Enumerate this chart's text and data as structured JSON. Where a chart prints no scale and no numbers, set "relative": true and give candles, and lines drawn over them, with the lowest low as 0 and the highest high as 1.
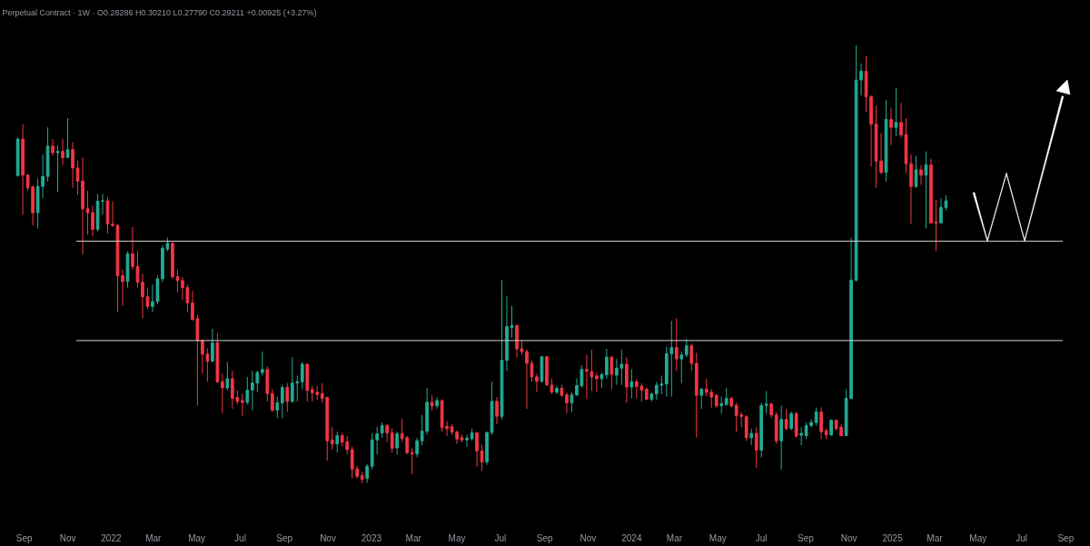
{
  "chart_data": {
    "type": "candlestick",
    "title": "Perpetual Contract · 1W · O0.28286 H0.30210 L0.27790 C0.29211 +0.00925 (+3.27%)",
    "relative": true,
    "x": [
      "2021-08-23",
      "2021-08-30",
      "2021-09-06",
      "2021-09-13",
      "2021-09-20",
      "2021-09-27",
      "2021-10-04",
      "2021-10-11",
      "2021-10-18",
      "2021-10-25",
      "2021-11-01",
      "2021-11-08",
      "2021-11-15",
      "2021-11-22",
      "2021-11-29",
      "2021-12-06",
      "2021-12-13",
      "2021-12-20",
      "2021-12-27",
      "2022-01-03",
      "2022-01-10",
      "2022-01-17",
      "2022-01-24",
      "2022-01-31",
      "2022-02-07",
      "2022-02-14",
      "2022-02-21",
      "2022-02-28",
      "2022-03-07",
      "2022-03-14",
      "2022-03-21",
      "2022-03-28",
      "2022-04-04",
      "2022-04-11",
      "2022-04-18",
      "2022-04-25",
      "2022-05-02",
      "2022-05-09",
      "2022-05-16",
      "2022-05-23",
      "2022-05-30",
      "2022-06-06",
      "2022-06-13",
      "2022-06-20",
      "2022-06-27",
      "2022-07-04",
      "2022-07-11",
      "2022-07-18",
      "2022-07-25",
      "2022-08-01",
      "2022-08-08",
      "2022-08-15",
      "2022-08-22",
      "2022-08-29",
      "2022-09-05",
      "2022-09-12",
      "2022-09-19",
      "2022-09-26",
      "2022-10-03",
      "2022-10-10",
      "2022-10-17",
      "2022-10-24",
      "2022-10-31",
      "2022-11-07",
      "2022-11-14",
      "2022-11-21",
      "2022-11-28",
      "2022-12-05",
      "2022-12-12",
      "2022-12-19",
      "2022-12-26",
      "2023-01-02",
      "2023-01-09",
      "2023-01-16",
      "2023-01-23",
      "2023-01-30",
      "2023-02-06",
      "2023-02-13",
      "2023-02-20",
      "2023-02-27",
      "2023-03-06",
      "2023-03-13",
      "2023-03-20",
      "2023-03-27",
      "2023-04-03",
      "2023-04-10",
      "2023-04-17",
      "2023-04-24",
      "2023-05-01",
      "2023-05-08",
      "2023-05-15",
      "2023-05-22",
      "2023-05-29",
      "2023-06-05",
      "2023-06-12",
      "2023-06-19",
      "2023-06-26",
      "2023-07-03",
      "2023-07-10",
      "2023-07-17",
      "2023-07-24",
      "2023-07-31",
      "2023-08-07",
      "2023-08-14",
      "2023-08-21",
      "2023-08-28",
      "2023-09-04",
      "2023-09-11",
      "2023-09-18",
      "2023-09-25",
      "2023-10-02",
      "2023-10-09",
      "2023-10-16",
      "2023-10-23",
      "2023-10-30",
      "2023-11-06",
      "2023-11-13",
      "2023-11-20",
      "2023-11-27",
      "2023-12-04",
      "2023-12-11",
      "2023-12-18",
      "2023-12-25",
      "2024-01-01",
      "2024-01-08",
      "2024-01-15",
      "2024-01-22",
      "2024-01-29",
      "2024-02-05",
      "2024-02-12",
      "2024-02-19",
      "2024-02-26",
      "2024-03-04",
      "2024-03-11",
      "2024-03-18",
      "2024-03-25",
      "2024-04-01",
      "2024-04-08",
      "2024-04-15",
      "2024-04-22",
      "2024-04-29",
      "2024-05-06",
      "2024-05-13",
      "2024-05-20",
      "2024-05-27",
      "2024-06-03",
      "2024-06-10",
      "2024-06-17",
      "2024-06-24",
      "2024-07-01",
      "2024-07-08",
      "2024-07-15",
      "2024-07-22",
      "2024-07-29",
      "2024-08-05",
      "2024-08-12",
      "2024-08-19",
      "2024-08-26",
      "2024-09-02",
      "2024-09-09",
      "2024-09-16",
      "2024-09-23",
      "2024-09-30",
      "2024-10-07",
      "2024-10-14",
      "2024-10-21",
      "2024-10-28",
      "2024-11-04",
      "2024-11-11",
      "2024-11-18",
      "2024-11-25",
      "2024-12-02",
      "2024-12-09",
      "2024-12-16",
      "2024-12-23",
      "2024-12-30",
      "2025-01-06",
      "2025-01-13",
      "2025-01-20",
      "2025-01-27",
      "2025-02-03",
      "2025-02-10",
      "2025-02-17",
      "2025-02-24",
      "2025-03-03",
      "2025-03-10",
      "2025-03-17"
    ],
    "ohlc": [
      [
        0.703,
        0.79,
        0.7,
        0.786
      ],
      [
        0.786,
        0.82,
        0.613,
        0.704
      ],
      [
        0.704,
        0.706,
        0.668,
        0.675
      ],
      [
        0.677,
        0.68,
        0.589,
        0.618
      ],
      [
        0.618,
        0.696,
        0.582,
        0.678
      ],
      [
        0.678,
        0.751,
        0.651,
        0.701
      ],
      [
        0.701,
        0.813,
        0.689,
        0.77
      ],
      [
        0.77,
        0.786,
        0.748,
        0.755
      ],
      [
        0.755,
        0.772,
        0.665,
        0.758
      ],
      [
        0.758,
        0.786,
        0.727,
        0.744
      ],
      [
        0.744,
        0.834,
        0.744,
        0.762
      ],
      [
        0.762,
        0.779,
        0.675,
        0.72
      ],
      [
        0.72,
        0.737,
        0.658,
        0.69
      ],
      [
        0.69,
        0.744,
        0.523,
        0.627
      ],
      [
        0.627,
        0.668,
        0.568,
        0.618
      ],
      [
        0.618,
        0.634,
        0.564,
        0.58
      ],
      [
        0.58,
        0.661,
        0.575,
        0.644
      ],
      [
        0.644,
        0.661,
        0.613,
        0.645
      ],
      [
        0.645,
        0.654,
        0.571,
        0.592
      ],
      [
        0.592,
        0.644,
        0.585,
        0.589
      ],
      [
        0.589,
        0.592,
        0.391,
        0.474
      ],
      [
        0.474,
        0.488,
        0.405,
        0.461
      ],
      [
        0.461,
        0.53,
        0.447,
        0.524
      ],
      [
        0.524,
        0.585,
        0.488,
        0.495
      ],
      [
        0.495,
        0.53,
        0.447,
        0.459
      ],
      [
        0.459,
        0.478,
        0.377,
        0.426
      ],
      [
        0.426,
        0.447,
        0.398,
        0.404
      ],
      [
        0.404,
        0.454,
        0.391,
        0.415
      ],
      [
        0.415,
        0.474,
        0.409,
        0.467
      ],
      [
        0.467,
        0.544,
        0.46,
        0.537
      ],
      [
        0.535,
        0.561,
        0.53,
        0.548
      ],
      [
        0.548,
        0.551,
        0.467,
        0.472
      ],
      [
        0.472,
        0.488,
        0.436,
        0.463
      ],
      [
        0.463,
        0.471,
        0.419,
        0.447
      ],
      [
        0.447,
        0.454,
        0.391,
        0.412
      ],
      [
        0.412,
        0.44,
        0.371,
        0.374
      ],
      [
        0.376,
        0.385,
        0.177,
        0.326
      ],
      [
        0.326,
        0.329,
        0.25,
        0.295
      ],
      [
        0.295,
        0.308,
        0.232,
        0.279
      ],
      [
        0.279,
        0.353,
        0.277,
        0.321
      ],
      [
        0.321,
        0.343,
        0.229,
        0.232
      ],
      [
        0.232,
        0.25,
        0.16,
        0.218
      ],
      [
        0.218,
        0.277,
        0.212,
        0.239
      ],
      [
        0.239,
        0.257,
        0.17,
        0.194
      ],
      [
        0.196,
        0.212,
        0.18,
        0.187
      ],
      [
        0.189,
        0.205,
        0.153,
        0.185
      ],
      [
        0.185,
        0.243,
        0.18,
        0.213
      ],
      [
        0.213,
        0.257,
        0.167,
        0.229
      ],
      [
        0.229,
        0.257,
        0.208,
        0.253
      ],
      [
        0.253,
        0.301,
        0.246,
        0.26
      ],
      [
        0.26,
        0.267,
        0.187,
        0.205
      ],
      [
        0.205,
        0.215,
        0.163,
        0.167
      ],
      [
        0.167,
        0.198,
        0.149,
        0.184
      ],
      [
        0.184,
        0.225,
        0.149,
        0.219
      ],
      [
        0.219,
        0.229,
        0.163,
        0.187
      ],
      [
        0.187,
        0.288,
        0.184,
        0.229
      ],
      [
        0.229,
        0.246,
        0.187,
        0.232
      ],
      [
        0.232,
        0.277,
        0.215,
        0.272
      ],
      [
        0.272,
        0.274,
        0.187,
        0.212
      ],
      [
        0.214,
        0.222,
        0.187,
        0.207
      ],
      [
        0.208,
        0.222,
        0.191,
        0.203
      ],
      [
        0.205,
        0.229,
        0.184,
        0.194
      ],
      [
        0.196,
        0.198,
        0.052,
        0.097
      ],
      [
        0.099,
        0.128,
        0.077,
        0.09
      ],
      [
        0.09,
        0.118,
        0.07,
        0.109
      ],
      [
        0.109,
        0.115,
        0.084,
        0.094
      ],
      [
        0.095,
        0.108,
        0.066,
        0.077
      ],
      [
        0.077,
        0.084,
        0.011,
        0.032
      ],
      [
        0.033,
        0.04,
        0.011,
        0.016
      ],
      [
        0.018,
        0.026,
        0.0,
        0.009
      ],
      [
        0.011,
        0.044,
        0.001,
        0.039
      ],
      [
        0.039,
        0.115,
        0.032,
        0.099
      ],
      [
        0.099,
        0.129,
        0.066,
        0.113
      ],
      [
        0.115,
        0.139,
        0.104,
        0.132
      ],
      [
        0.132,
        0.135,
        0.094,
        0.115
      ],
      [
        0.115,
        0.125,
        0.07,
        0.08
      ],
      [
        0.081,
        0.118,
        0.066,
        0.113
      ],
      [
        0.113,
        0.148,
        0.094,
        0.102
      ],
      [
        0.104,
        0.108,
        0.066,
        0.07
      ],
      [
        0.07,
        0.08,
        0.021,
        0.067
      ],
      [
        0.067,
        0.104,
        0.059,
        0.097
      ],
      [
        0.097,
        0.156,
        0.087,
        0.119
      ],
      [
        0.119,
        0.218,
        0.111,
        0.185
      ],
      [
        0.185,
        0.201,
        0.166,
        0.177
      ],
      [
        0.177,
        0.197,
        0.17,
        0.189
      ],
      [
        0.189,
        0.192,
        0.118,
        0.128
      ],
      [
        0.13,
        0.142,
        0.108,
        0.125
      ],
      [
        0.129,
        0.135,
        0.111,
        0.117
      ],
      [
        0.117,
        0.121,
        0.09,
        0.101
      ],
      [
        0.104,
        0.111,
        0.094,
        0.099
      ],
      [
        0.099,
        0.111,
        0.083,
        0.103
      ],
      [
        0.102,
        0.125,
        0.097,
        0.115
      ],
      [
        0.115,
        0.118,
        0.038,
        0.074
      ],
      [
        0.074,
        0.088,
        0.028,
        0.049
      ],
      [
        0.049,
        0.118,
        0.042,
        0.116
      ],
      [
        0.116,
        0.232,
        0.111,
        0.187
      ],
      [
        0.187,
        0.197,
        0.135,
        0.153
      ],
      [
        0.153,
        0.464,
        0.146,
        0.281
      ],
      [
        0.281,
        0.427,
        0.256,
        0.358
      ],
      [
        0.356,
        0.405,
        0.332,
        0.36
      ],
      [
        0.36,
        0.364,
        0.287,
        0.307
      ],
      [
        0.307,
        0.326,
        0.294,
        0.301
      ],
      [
        0.301,
        0.305,
        0.17,
        0.274
      ],
      [
        0.274,
        0.281,
        0.232,
        0.243
      ],
      [
        0.243,
        0.25,
        0.208,
        0.233
      ],
      [
        0.233,
        0.291,
        0.229,
        0.289
      ],
      [
        0.289,
        0.291,
        0.222,
        0.225
      ],
      [
        0.224,
        0.239,
        0.204,
        0.208
      ],
      [
        0.208,
        0.222,
        0.204,
        0.217
      ],
      [
        0.217,
        0.225,
        0.198,
        0.201
      ],
      [
        0.202,
        0.208,
        0.16,
        0.184
      ],
      [
        0.184,
        0.208,
        0.163,
        0.202
      ],
      [
        0.202,
        0.24,
        0.199,
        0.223
      ],
      [
        0.223,
        0.27,
        0.218,
        0.26
      ],
      [
        0.26,
        0.294,
        0.192,
        0.256
      ],
      [
        0.255,
        0.305,
        0.211,
        0.243
      ],
      [
        0.245,
        0.253,
        0.208,
        0.239
      ],
      [
        0.239,
        0.253,
        0.218,
        0.248
      ],
      [
        0.248,
        0.307,
        0.239,
        0.288
      ],
      [
        0.288,
        0.291,
        0.215,
        0.249
      ],
      [
        0.247,
        0.284,
        0.225,
        0.263
      ],
      [
        0.263,
        0.305,
        0.225,
        0.272
      ],
      [
        0.272,
        0.288,
        0.184,
        0.22
      ],
      [
        0.22,
        0.261,
        0.194,
        0.232
      ],
      [
        0.232,
        0.238,
        0.194,
        0.221
      ],
      [
        0.222,
        0.229,
        0.187,
        0.213
      ],
      [
        0.215,
        0.218,
        0.191,
        0.192
      ],
      [
        0.192,
        0.208,
        0.187,
        0.204
      ],
      [
        0.204,
        0.232,
        0.191,
        0.224
      ],
      [
        0.224,
        0.246,
        0.204,
        0.227
      ],
      [
        0.227,
        0.312,
        0.198,
        0.296
      ],
      [
        0.296,
        0.371,
        0.198,
        0.31
      ],
      [
        0.31,
        0.377,
        0.256,
        0.284
      ],
      [
        0.284,
        0.301,
        0.229,
        0.293
      ],
      [
        0.293,
        0.33,
        0.288,
        0.314
      ],
      [
        0.314,
        0.319,
        0.256,
        0.274
      ],
      [
        0.274,
        0.298,
        0.104,
        0.201
      ],
      [
        0.201,
        0.218,
        0.17,
        0.215
      ],
      [
        0.215,
        0.239,
        0.198,
        0.208
      ],
      [
        0.208,
        0.215,
        0.173,
        0.197
      ],
      [
        0.201,
        0.204,
        0.173,
        0.177
      ],
      [
        0.177,
        0.198,
        0.159,
        0.182
      ],
      [
        0.18,
        0.218,
        0.177,
        0.194
      ],
      [
        0.194,
        0.198,
        0.173,
        0.177
      ],
      [
        0.178,
        0.184,
        0.118,
        0.155
      ],
      [
        0.156,
        0.163,
        0.128,
        0.153
      ],
      [
        0.152,
        0.156,
        0.097,
        0.104
      ],
      [
        0.104,
        0.125,
        0.087,
        0.114
      ],
      [
        0.114,
        0.128,
        0.035,
        0.076
      ],
      [
        0.076,
        0.184,
        0.059,
        0.178
      ],
      [
        0.178,
        0.211,
        0.159,
        0.181
      ],
      [
        0.181,
        0.184,
        0.149,
        0.156
      ],
      [
        0.156,
        0.163,
        0.09,
        0.097
      ],
      [
        0.097,
        0.177,
        0.031,
        0.146
      ],
      [
        0.146,
        0.17,
        0.121,
        0.125
      ],
      [
        0.125,
        0.164,
        0.121,
        0.159
      ],
      [
        0.159,
        0.163,
        0.104,
        0.108
      ],
      [
        0.11,
        0.128,
        0.087,
        0.114
      ],
      [
        0.109,
        0.139,
        0.101,
        0.132
      ],
      [
        0.132,
        0.146,
        0.128,
        0.139
      ],
      [
        0.139,
        0.173,
        0.132,
        0.163
      ],
      [
        0.163,
        0.173,
        0.101,
        0.118
      ],
      [
        0.12,
        0.125,
        0.101,
        0.111
      ],
      [
        0.111,
        0.146,
        0.108,
        0.144
      ],
      [
        0.144,
        0.146,
        0.121,
        0.125
      ],
      [
        0.128,
        0.135,
        0.108,
        0.109
      ],
      [
        0.109,
        0.215,
        0.108,
        0.194
      ],
      [
        0.194,
        0.561,
        0.191,
        0.464
      ],
      [
        0.464,
        1.0,
        0.461,
        0.921
      ],
      [
        0.921,
        0.959,
        0.886,
        0.941
      ],
      [
        0.941,
        0.976,
        0.848,
        0.883
      ],
      [
        0.883,
        0.886,
        0.723,
        0.82
      ],
      [
        0.82,
        0.862,
        0.675,
        0.736
      ],
      [
        0.736,
        0.8,
        0.706,
        0.71
      ],
      [
        0.71,
        0.876,
        0.689,
        0.831
      ],
      [
        0.831,
        0.858,
        0.772,
        0.813
      ],
      [
        0.813,
        0.903,
        0.793,
        0.824
      ],
      [
        0.824,
        0.869,
        0.789,
        0.796
      ],
      [
        0.796,
        0.834,
        0.709,
        0.73
      ],
      [
        0.73,
        0.751,
        0.592,
        0.678
      ],
      [
        0.678,
        0.748,
        0.675,
        0.716
      ],
      [
        0.716,
        0.727,
        0.682,
        0.704
      ],
      [
        0.704,
        0.758,
        0.582,
        0.727
      ],
      [
        0.727,
        0.741,
        0.592,
        0.595
      ],
      [
        0.597,
        0.647,
        0.53,
        0.595
      ],
      [
        0.595,
        0.651,
        0.592,
        0.63
      ],
      [
        0.63,
        0.658,
        0.623,
        0.645
      ]
    ],
    "xlim": [
      "2021-07-29",
      "2025-10-05"
    ],
    "xticks": [
      {
        "value": "2021-09-01",
        "label": "Sep"
      },
      {
        "value": "2021-11-01",
        "label": "Nov"
      },
      {
        "value": "2022-01-01",
        "label": "2022"
      },
      {
        "value": "2022-03-01",
        "label": "Mar"
      },
      {
        "value": "2022-05-01",
        "label": "May"
      },
      {
        "value": "2022-07-01",
        "label": "Jul"
      },
      {
        "value": "2022-09-01",
        "label": "Sep"
      },
      {
        "value": "2022-11-01",
        "label": "Nov"
      },
      {
        "value": "2023-01-01",
        "label": "2023"
      },
      {
        "value": "2023-03-01",
        "label": "Mar"
      },
      {
        "value": "2023-05-01",
        "label": "May"
      },
      {
        "value": "2023-07-01",
        "label": "Jul"
      },
      {
        "value": "2023-09-01",
        "label": "Sep"
      },
      {
        "value": "2023-11-01",
        "label": "Nov"
      },
      {
        "value": "2024-01-01",
        "label": "2024"
      },
      {
        "value": "2024-03-01",
        "label": "Mar"
      },
      {
        "value": "2024-05-01",
        "label": "May"
      },
      {
        "value": "2024-07-01",
        "label": "Jul"
      },
      {
        "value": "2024-09-01",
        "label": "Sep"
      },
      {
        "value": "2024-11-01",
        "label": "Nov"
      },
      {
        "value": "2025-01-01",
        "label": "2025"
      },
      {
        "value": "2025-03-01",
        "label": "Mar"
      },
      {
        "value": "2025-05-01",
        "label": "May"
      },
      {
        "value": "2025-07-01",
        "label": "Jul"
      },
      {
        "value": "2025-09-01",
        "label": "Sep"
      }
    ],
    "ref_lines": [
      {
        "axis": "y",
        "value": 0.553,
        "color": "#d0d0d0"
      },
      {
        "axis": "y",
        "value": 0.326,
        "color": "#d0d0d0"
      }
    ],
    "tick_labels": "x",
    "grid": false
  }
}
